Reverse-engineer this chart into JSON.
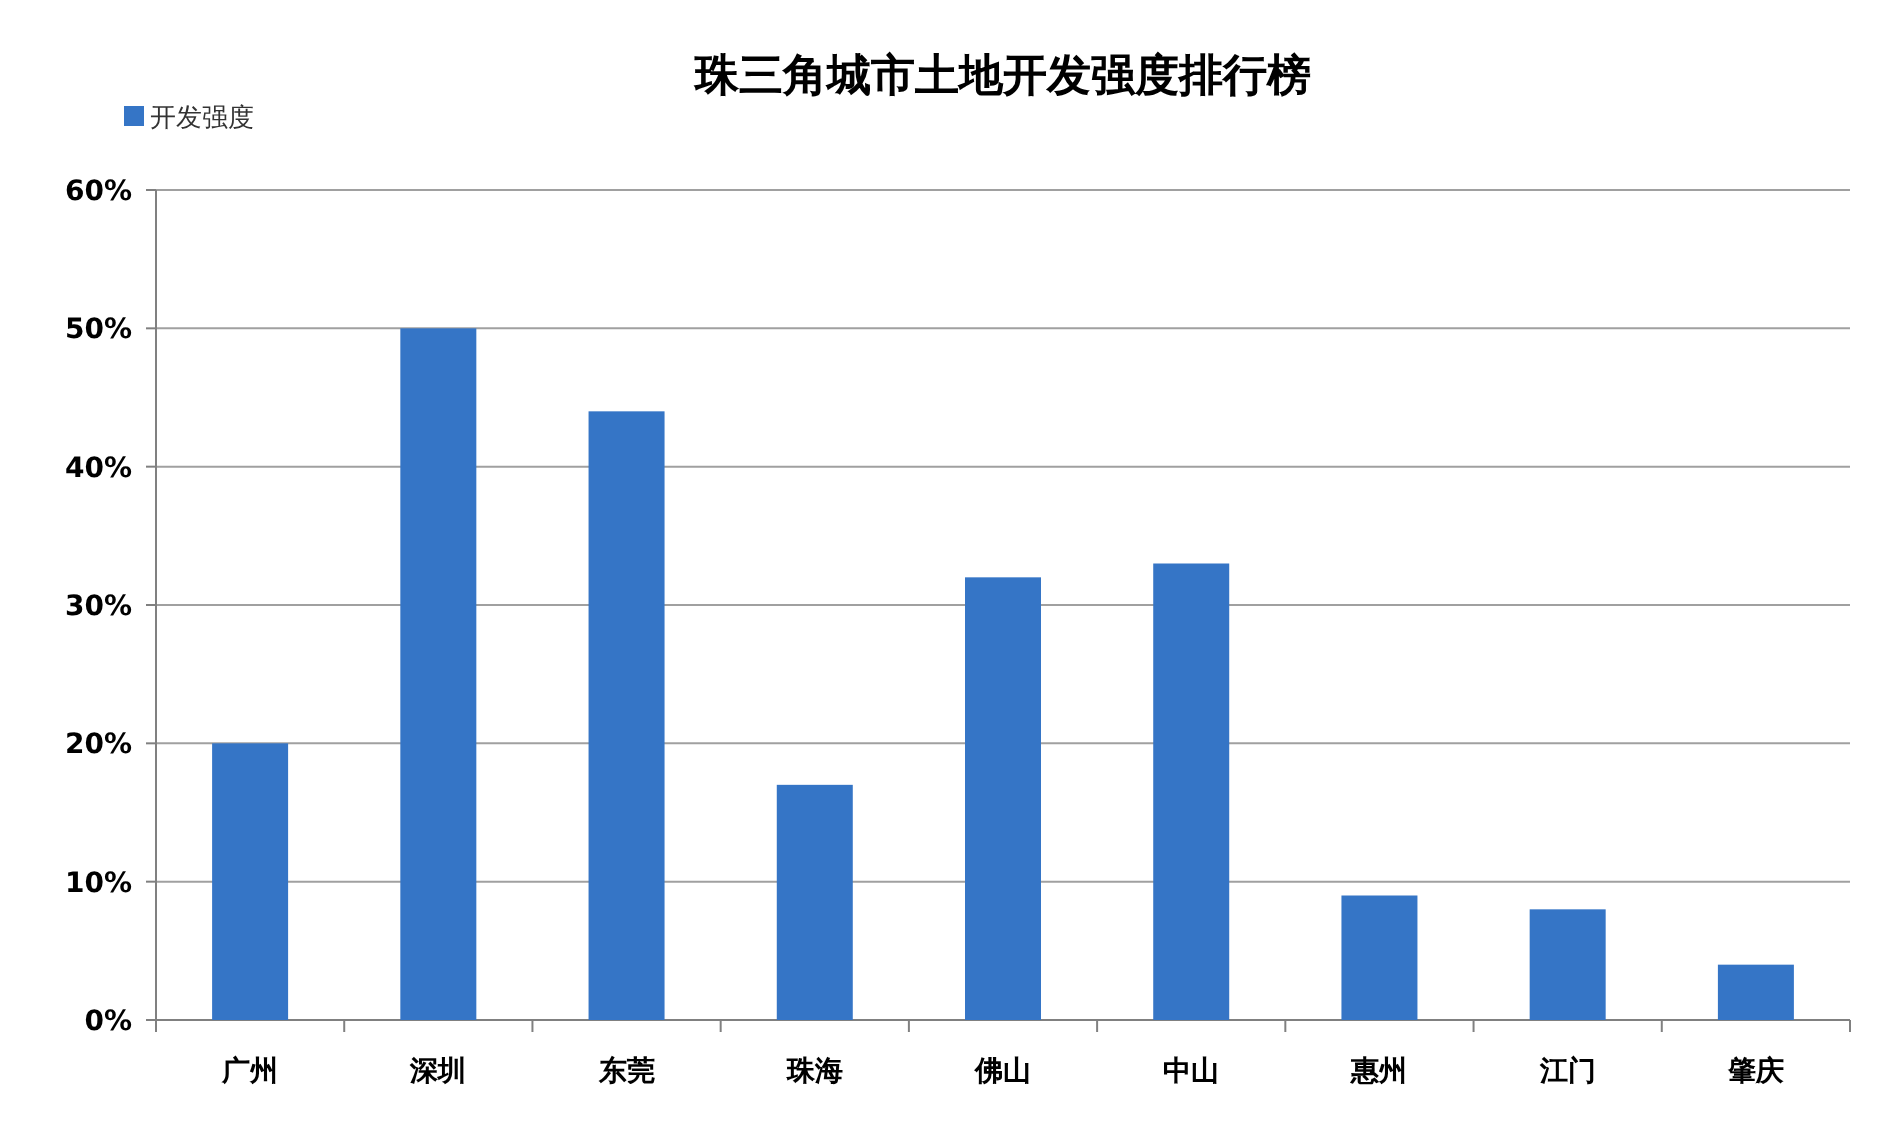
{
  "chart_data": {
    "type": "bar",
    "title": "珠三角城市土地开发强度排行榜",
    "categories": [
      "广州",
      "深圳",
      "东莞",
      "珠海",
      "佛山",
      "中山",
      "惠州",
      "江门",
      "肇庆"
    ],
    "series": [
      {
        "name": "开发强度",
        "color": "#3575c6",
        "values": [
          20,
          50,
          44,
          17,
          32,
          33,
          9,
          8,
          4
        ]
      }
    ],
    "ylim": [
      0,
      60
    ],
    "yticks": [
      {
        "value": 0,
        "label": "0%"
      },
      {
        "value": 10,
        "label": "10%"
      },
      {
        "value": 20,
        "label": "20%"
      },
      {
        "value": 30,
        "label": "30%"
      },
      {
        "value": 40,
        "label": "40%"
      },
      {
        "value": 50,
        "label": "50%"
      },
      {
        "value": 60,
        "label": "60%"
      }
    ],
    "grid": "y",
    "legend": "top left"
  }
}
